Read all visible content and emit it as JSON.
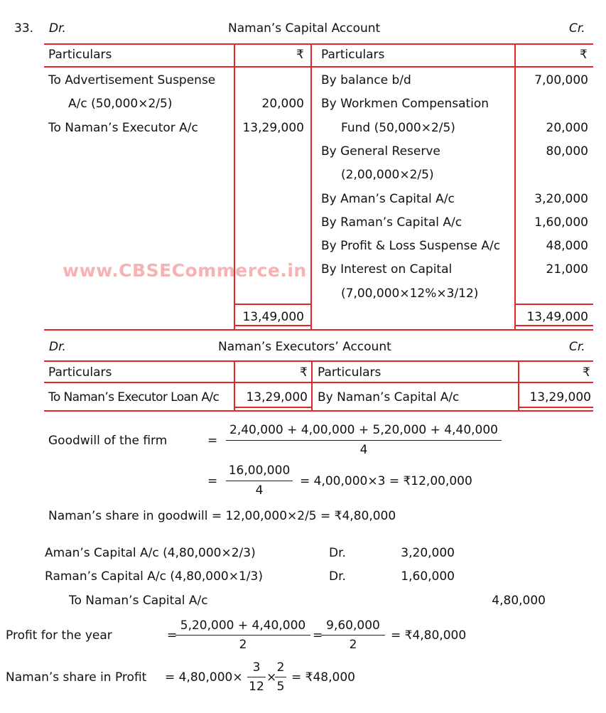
{
  "question_number": "33.",
  "capital_account": {
    "dr": "Dr.",
    "title": "Naman’s Capital Account",
    "cr": "Cr.",
    "header": {
      "particulars_left": "Particulars",
      "currency_left": "₹",
      "particulars_right": "Particulars",
      "currency_right": "₹"
    },
    "debit_rows": [
      {
        "text": "To Advertisement Suspense",
        "amount": "",
        "indent": false
      },
      {
        "text": "A/c (50,000×2/5)",
        "amount": "20,000",
        "indent": true
      },
      {
        "text": "To Naman’s Executor A/c",
        "amount": "13,29,000",
        "indent": false
      }
    ],
    "credit_rows": [
      {
        "text": "By balance b/d",
        "amount": "7,00,000",
        "indent": false
      },
      {
        "text": "By Workmen Compensation",
        "amount": "",
        "indent": false
      },
      {
        "text": "Fund (50,000×2/5)",
        "amount": "20,000",
        "indent": true
      },
      {
        "text": "By General Reserve",
        "amount": "80,000",
        "indent": false
      },
      {
        "text": "(2,00,000×2/5)",
        "amount": "",
        "indent": true
      },
      {
        "text": "By Aman’s Capital A/c",
        "amount": "3,20,000",
        "indent": false
      },
      {
        "text": "By Raman’s Capital A/c",
        "amount": "1,60,000",
        "indent": false
      },
      {
        "text": "By Profit & Loss Suspense A/c",
        "amount": "48,000",
        "indent": false
      },
      {
        "text": "By Interest on Capital",
        "amount": "21,000",
        "indent": false
      },
      {
        "text": "(7,00,000×12%×3/12)",
        "amount": "",
        "indent": true
      }
    ],
    "total_left": "13,49,000",
    "total_right": "13,49,000"
  },
  "watermark": "www.CBSECommerce.in",
  "executors_account": {
    "dr": "Dr.",
    "title": "Naman’s Executors’ Account",
    "cr": "Cr.",
    "header": {
      "particulars_left": "Particulars",
      "currency_left": "₹",
      "particulars_right": "Particulars",
      "currency_right": "₹"
    },
    "debit": {
      "text": "To Naman’s Executor Loan A/c",
      "amount": "13,29,000"
    },
    "credit": {
      "text": "By Naman’s Capital A/c",
      "amount": "13,29,000"
    }
  },
  "workings": {
    "goodwill_label": "Goodwill of the firm",
    "eq1": "=",
    "goodwill_num": "2,40,000 + 4,00,000 + 5,20,000 + 4,40,000",
    "goodwill_den": "4",
    "eq2": "=",
    "goodwill_num2": "16,00,000",
    "goodwill_den2": "4",
    "goodwill_result": "= 4,00,000×3 = ₹12,00,000",
    "naman_goodwill": "Naman’s share in goodwill =  12,00,000×2/5 = ₹4,80,000",
    "journal": [
      {
        "text": "Aman’s Capital A/c (4,80,000×2/3)",
        "dr": "Dr.",
        "amount": "3,20,000"
      },
      {
        "text": "Raman’s Capital A/c (4,80,000×1/3)",
        "dr": "Dr.",
        "amount": "1,60,000"
      }
    ],
    "journal_credit": {
      "text": "To Naman’s Capital A/c",
      "amount": "4,80,000"
    },
    "profit_label": "Profit for the year",
    "profit_eq": "=",
    "profit_num": "5,20,000 + 4,40,000",
    "profit_den": "2",
    "profit_eq2": "=",
    "profit_num2": "9,60,000",
    "profit_den2": "2",
    "profit_result": "= ₹4,80,000",
    "share_label": "Naman’s share in Profit",
    "share_expr": "=  4,80,000×",
    "share_f1_num": "3",
    "share_f1_den": "12",
    "share_times": "×",
    "share_f2_num": "2",
    "share_f2_den": "5",
    "share_result": "= ₹48,000"
  }
}
